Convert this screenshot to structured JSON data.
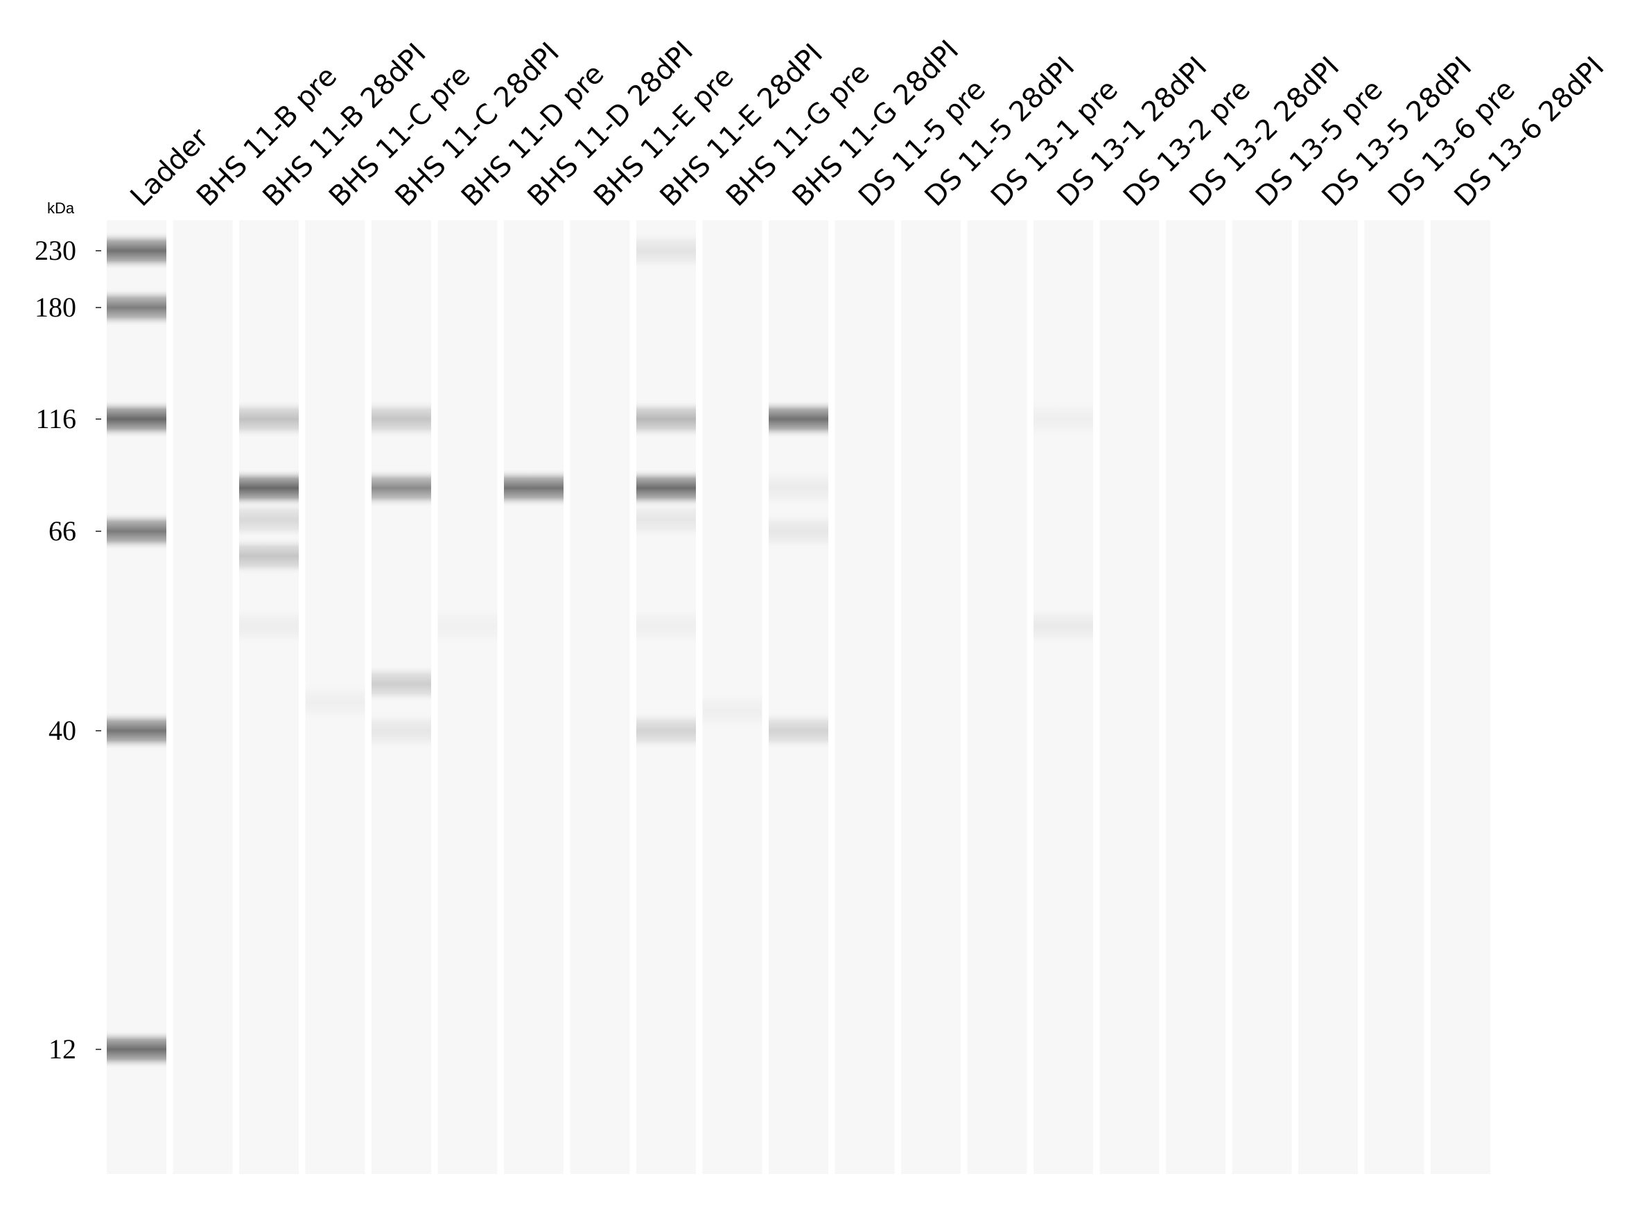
{
  "unit_label": "kDa",
  "lane_labels": [
    "Ladder",
    "BHS 11-B pre",
    "BHS 11-B 28dPI",
    "BHS 11-C pre",
    "BHS 11-C 28dPI",
    "BHS 11-D pre",
    "BHS 11-D 28dPI",
    "BHS 11-E pre",
    "BHS 11-E 28dPI",
    "BHS 11-G pre",
    "BHS 11-G 28dPI",
    "DS 11-5 pre",
    "DS 11-5 28dPI",
    "DS 13-1 pre",
    "DS 13-1 28dPI",
    "DS 13-2 pre",
    "DS 13-2 28dPI",
    "DS 13-5 pre",
    "DS 13-5 28dPI",
    "DS 13-6 pre",
    "DS 13-6 28dPI"
  ],
  "markers": [
    {
      "label": "230",
      "kda": 230
    },
    {
      "label": "180",
      "kda": 180
    },
    {
      "label": "116",
      "kda": 116
    },
    {
      "label": "66",
      "kda": 66
    },
    {
      "label": "40",
      "kda": 40
    },
    {
      "label": "12",
      "kda": 12
    }
  ],
  "lanes": [
    {
      "bands": [
        {
          "kda": 230,
          "intensity": 0.8
        },
        {
          "kda": 180,
          "intensity": 0.72
        },
        {
          "kda": 116,
          "intensity": 0.85
        },
        {
          "kda": 66,
          "intensity": 0.75
        },
        {
          "kda": 40,
          "intensity": 0.78
        },
        {
          "kda": 12,
          "intensity": 0.82
        }
      ]
    },
    {
      "bands": []
    },
    {
      "bands": [
        {
          "kda": 116,
          "intensity": 0.32
        },
        {
          "kda": 82,
          "intensity": 0.85
        },
        {
          "kda": 70,
          "intensity": 0.18
        },
        {
          "kda": 62,
          "intensity": 0.3
        },
        {
          "kda": 52,
          "intensity": 0.06
        }
      ]
    },
    {
      "bands": [
        {
          "kda": 43,
          "intensity": 0.05
        }
      ]
    },
    {
      "bands": [
        {
          "kda": 116,
          "intensity": 0.3
        },
        {
          "kda": 82,
          "intensity": 0.65
        },
        {
          "kda": 45,
          "intensity": 0.25
        },
        {
          "kda": 40,
          "intensity": 0.1
        }
      ]
    },
    {
      "bands": [
        {
          "kda": 52,
          "intensity": 0.04
        }
      ]
    },
    {
      "bands": [
        {
          "kda": 82,
          "intensity": 0.78
        }
      ]
    },
    {
      "bands": []
    },
    {
      "bands": [
        {
          "kda": 230,
          "intensity": 0.12
        },
        {
          "kda": 116,
          "intensity": 0.38
        },
        {
          "kda": 82,
          "intensity": 0.82
        },
        {
          "kda": 70,
          "intensity": 0.1
        },
        {
          "kda": 52,
          "intensity": 0.05
        },
        {
          "kda": 40,
          "intensity": 0.22
        }
      ]
    },
    {
      "bands": [
        {
          "kda": 42,
          "intensity": 0.05
        }
      ]
    },
    {
      "bands": [
        {
          "kda": 116,
          "intensity": 0.8
        },
        {
          "kda": 82,
          "intensity": 0.07
        },
        {
          "kda": 66,
          "intensity": 0.1
        },
        {
          "kda": 40,
          "intensity": 0.22
        }
      ]
    },
    {
      "bands": []
    },
    {
      "bands": []
    },
    {
      "bands": []
    },
    {
      "bands": [
        {
          "kda": 116,
          "intensity": 0.05
        },
        {
          "kda": 52,
          "intensity": 0.08
        }
      ]
    },
    {
      "bands": []
    },
    {
      "bands": []
    },
    {
      "bands": []
    },
    {
      "bands": []
    },
    {
      "bands": []
    },
    {
      "bands": []
    }
  ],
  "colors": {
    "background": "#ffffff",
    "lane": "#f7f7f7",
    "band": "#505050",
    "text": "#000000"
  }
}
